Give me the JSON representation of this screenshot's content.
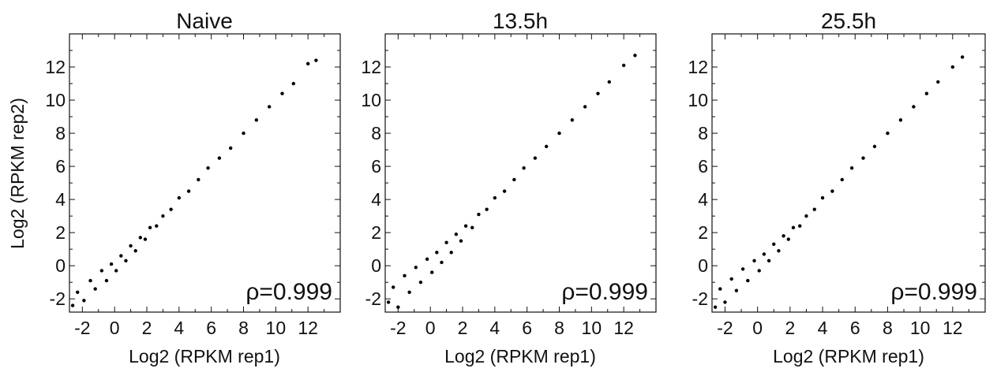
{
  "chart_data": [
    {
      "type": "scatter",
      "title": "Naive",
      "xlabel": "Log2 (RPKM rep1)",
      "ylabel": "Log2 (RPKM rep2)",
      "xlim": [
        -2.8,
        14
      ],
      "ylim": [
        -2.8,
        14
      ],
      "xticks": [
        "-2",
        "0",
        "2",
        "4",
        "6",
        "8",
        "10",
        "12"
      ],
      "yticks": [
        "-2",
        "0",
        "2",
        "4",
        "6",
        "8",
        "10",
        "12"
      ],
      "annotation": "ρ=0.999",
      "grid": false,
      "series": [
        {
          "points": [
            [
              -2.6,
              -2.4
            ],
            [
              -2.3,
              -1.6
            ],
            [
              -1.9,
              -2.1
            ],
            [
              -1.5,
              -0.9
            ],
            [
              -1.2,
              -1.4
            ],
            [
              -0.8,
              -0.3
            ],
            [
              -0.5,
              -0.9
            ],
            [
              -0.2,
              0.1
            ],
            [
              0.1,
              -0.3
            ],
            [
              0.4,
              0.6
            ],
            [
              0.7,
              0.3
            ],
            [
              1.0,
              1.2
            ],
            [
              1.3,
              0.9
            ],
            [
              1.6,
              1.7
            ],
            [
              1.9,
              1.6
            ],
            [
              2.2,
              2.3
            ],
            [
              2.6,
              2.4
            ],
            [
              3.0,
              3.0
            ],
            [
              3.5,
              3.4
            ],
            [
              4.0,
              4.1
            ],
            [
              4.6,
              4.5
            ],
            [
              5.2,
              5.2
            ],
            [
              5.8,
              5.9
            ],
            [
              6.5,
              6.5
            ],
            [
              7.2,
              7.1
            ],
            [
              8.0,
              8.0
            ],
            [
              8.8,
              8.8
            ],
            [
              9.6,
              9.6
            ],
            [
              10.4,
              10.4
            ],
            [
              11.1,
              11.0
            ],
            [
              12.0,
              12.2
            ],
            [
              12.5,
              12.4
            ]
          ]
        }
      ]
    },
    {
      "type": "scatter",
      "title": "13.5h",
      "xlabel": "Log2 (RPKM rep1)",
      "ylabel": "",
      "xlim": [
        -2.8,
        14
      ],
      "ylim": [
        -2.8,
        14
      ],
      "xticks": [
        "-2",
        "0",
        "2",
        "4",
        "6",
        "8",
        "10",
        "12"
      ],
      "yticks": [
        "-2",
        "0",
        "2",
        "4",
        "6",
        "8",
        "10",
        "12"
      ],
      "annotation": "ρ=0.999",
      "grid": false,
      "series": [
        {
          "points": [
            [
              -2.6,
              -2.2
            ],
            [
              -2.3,
              -1.3
            ],
            [
              -2.0,
              -2.5
            ],
            [
              -1.6,
              -0.6
            ],
            [
              -1.3,
              -1.6
            ],
            [
              -0.9,
              -0.1
            ],
            [
              -0.6,
              -1.0
            ],
            [
              -0.2,
              0.4
            ],
            [
              0.1,
              -0.4
            ],
            [
              0.4,
              0.8
            ],
            [
              0.7,
              0.2
            ],
            [
              1.0,
              1.4
            ],
            [
              1.3,
              0.8
            ],
            [
              1.6,
              1.9
            ],
            [
              1.9,
              1.5
            ],
            [
              2.2,
              2.4
            ],
            [
              2.6,
              2.3
            ],
            [
              3.0,
              3.1
            ],
            [
              3.5,
              3.4
            ],
            [
              4.0,
              4.1
            ],
            [
              4.6,
              4.5
            ],
            [
              5.2,
              5.2
            ],
            [
              5.8,
              5.9
            ],
            [
              6.5,
              6.5
            ],
            [
              7.2,
              7.2
            ],
            [
              8.0,
              8.0
            ],
            [
              8.8,
              8.8
            ],
            [
              9.6,
              9.6
            ],
            [
              10.4,
              10.4
            ],
            [
              11.1,
              11.1
            ],
            [
              12.0,
              12.1
            ],
            [
              12.7,
              12.7
            ]
          ]
        }
      ]
    },
    {
      "type": "scatter",
      "title": "25.5h",
      "xlabel": "Log2 (RPKM rep1)",
      "ylabel": "",
      "xlim": [
        -2.8,
        14
      ],
      "ylim": [
        -2.8,
        14
      ],
      "xticks": [
        "-2",
        "0",
        "2",
        "4",
        "6",
        "8",
        "10",
        "12"
      ],
      "yticks": [
        "-2",
        "0",
        "2",
        "4",
        "6",
        "8",
        "10",
        "12"
      ],
      "annotation": "ρ=0.999",
      "grid": false,
      "series": [
        {
          "points": [
            [
              -2.6,
              -2.5
            ],
            [
              -2.3,
              -1.4
            ],
            [
              -2.0,
              -2.2
            ],
            [
              -1.6,
              -0.8
            ],
            [
              -1.3,
              -1.5
            ],
            [
              -0.9,
              -0.2
            ],
            [
              -0.6,
              -0.9
            ],
            [
              -0.2,
              0.3
            ],
            [
              0.1,
              -0.3
            ],
            [
              0.4,
              0.7
            ],
            [
              0.7,
              0.3
            ],
            [
              1.0,
              1.3
            ],
            [
              1.3,
              0.9
            ],
            [
              1.6,
              1.8
            ],
            [
              1.9,
              1.6
            ],
            [
              2.2,
              2.3
            ],
            [
              2.6,
              2.4
            ],
            [
              3.0,
              3.0
            ],
            [
              3.5,
              3.4
            ],
            [
              4.0,
              4.1
            ],
            [
              4.6,
              4.5
            ],
            [
              5.2,
              5.2
            ],
            [
              5.8,
              5.9
            ],
            [
              6.5,
              6.5
            ],
            [
              7.2,
              7.2
            ],
            [
              8.0,
              8.0
            ],
            [
              8.8,
              8.8
            ],
            [
              9.6,
              9.6
            ],
            [
              10.4,
              10.4
            ],
            [
              11.1,
              11.1
            ],
            [
              12.0,
              12.0
            ],
            [
              12.6,
              12.6
            ]
          ]
        }
      ]
    }
  ]
}
